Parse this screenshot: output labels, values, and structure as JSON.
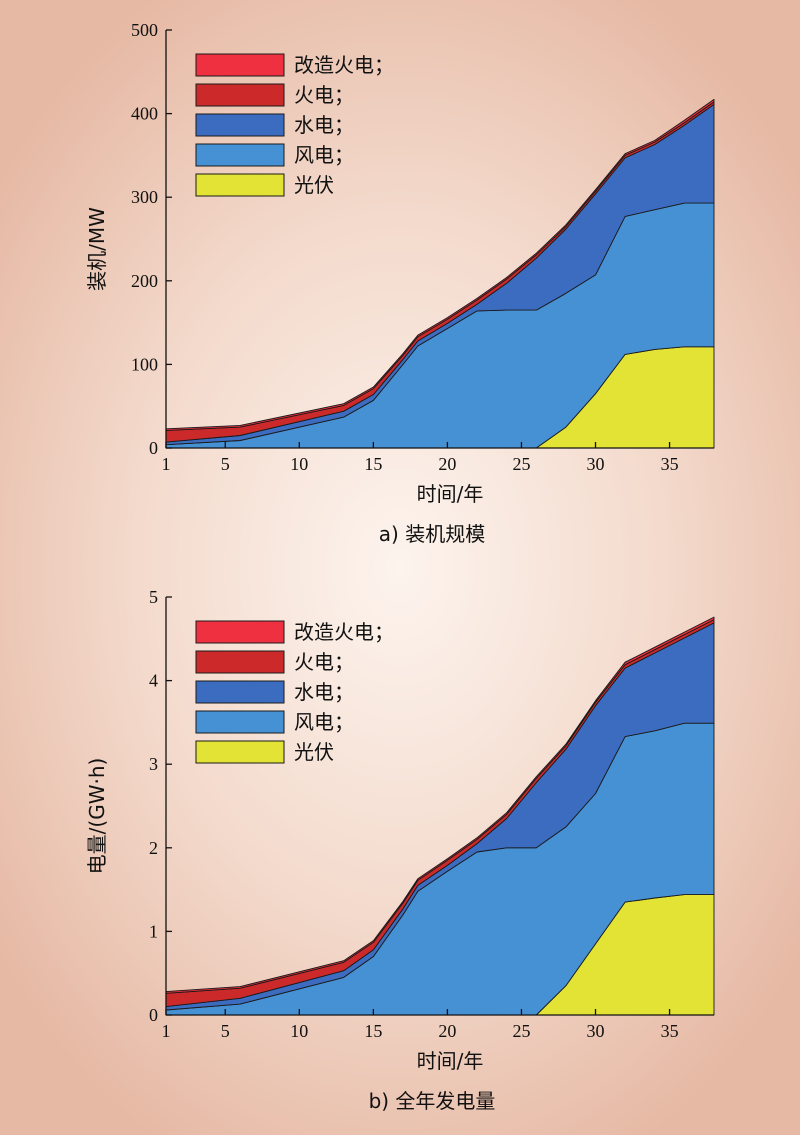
{
  "chart_data": [
    {
      "type": "area",
      "stacked": true,
      "caption": "a) 装机规模",
      "xlabel": "时间/年",
      "ylabel": "装机/MW",
      "xlim": [
        1,
        38
      ],
      "ylim": [
        0,
        500
      ],
      "xticks": [
        1,
        5,
        10,
        15,
        20,
        25,
        30,
        35
      ],
      "yticks": [
        0,
        100,
        200,
        300,
        400,
        500
      ],
      "legend_position": "top-left",
      "x": [
        1,
        6,
        13,
        15,
        17,
        18,
        20,
        22,
        24,
        26,
        28,
        30,
        32,
        34,
        36,
        38
      ],
      "series": [
        {
          "name": "光伏",
          "color": "#e3e336",
          "values": [
            0,
            0,
            0,
            0,
            0,
            0,
            0,
            0,
            0,
            0,
            25,
            65,
            112,
            118,
            121,
            121
          ]
        },
        {
          "name": "风电",
          "color": "#4690d4",
          "values": [
            4,
            9,
            37,
            57,
            100,
            122,
            143,
            164,
            165,
            165,
            160,
            142,
            165,
            167,
            172,
            172
          ]
        },
        {
          "name": "水电",
          "color": "#3c6cc0",
          "values": [
            3,
            6,
            7,
            7,
            6,
            6,
            6,
            8,
            32,
            62,
            77,
            97,
            70,
            78,
            93,
            118
          ]
        },
        {
          "name": "火电",
          "color": "#cc2a2a",
          "values": [
            14,
            10,
            7,
            7,
            5,
            5,
            5,
            5,
            5,
            4,
            3,
            3,
            3,
            3,
            3,
            3
          ]
        },
        {
          "name": "改造火电；",
          "color": "#ee3040",
          "values": [
            2,
            2,
            2,
            2,
            2,
            2,
            2,
            2,
            2,
            2,
            2,
            2,
            2,
            2,
            3,
            3
          ]
        }
      ],
      "legend_labels": [
        "改造火电；",
        "火电；",
        "水电；",
        "风电；",
        "光伏"
      ]
    },
    {
      "type": "area",
      "stacked": true,
      "caption": "b) 全年发电量",
      "xlabel": "时间/年",
      "ylabel": "电量/(GW·h)",
      "xlim": [
        1,
        38
      ],
      "ylim": [
        0,
        5
      ],
      "xticks": [
        1,
        5,
        10,
        15,
        20,
        25,
        30,
        35
      ],
      "yticks": [
        0,
        1,
        2,
        3,
        4,
        5
      ],
      "legend_position": "top-left",
      "x": [
        1,
        6,
        13,
        15,
        17,
        18,
        20,
        22,
        24,
        26,
        28,
        30,
        32,
        34,
        36,
        38
      ],
      "series": [
        {
          "name": "光伏",
          "color": "#e3e336",
          "values": [
            0,
            0,
            0,
            0,
            0,
            0,
            0,
            0,
            0,
            0,
            0.35,
            0.85,
            1.35,
            1.4,
            1.44,
            1.44
          ]
        },
        {
          "name": "风电",
          "color": "#4690d4",
          "values": [
            0.06,
            0.13,
            0.45,
            0.7,
            1.2,
            1.48,
            1.72,
            1.95,
            2.0,
            2.0,
            1.9,
            1.8,
            1.98,
            2.0,
            2.05,
            2.05
          ]
        },
        {
          "name": "水电",
          "color": "#3c6cc0",
          "values": [
            0.04,
            0.07,
            0.08,
            0.08,
            0.07,
            0.07,
            0.07,
            0.1,
            0.35,
            0.78,
            0.93,
            1.05,
            0.82,
            0.93,
            1.02,
            1.2
          ]
        },
        {
          "name": "火电",
          "color": "#cc2a2a",
          "values": [
            0.16,
            0.12,
            0.1,
            0.09,
            0.07,
            0.06,
            0.06,
            0.05,
            0.05,
            0.05,
            0.04,
            0.04,
            0.04,
            0.04,
            0.04,
            0.04
          ]
        },
        {
          "name": "改造火电；",
          "color": "#ee3040",
          "values": [
            0.02,
            0.02,
            0.02,
            0.02,
            0.02,
            0.02,
            0.02,
            0.02,
            0.02,
            0.02,
            0.02,
            0.02,
            0.03,
            0.03,
            0.03,
            0.03
          ]
        }
      ],
      "legend_labels": [
        "改造火电；",
        "火电；",
        "水电；",
        "风电；",
        "光伏"
      ]
    }
  ]
}
